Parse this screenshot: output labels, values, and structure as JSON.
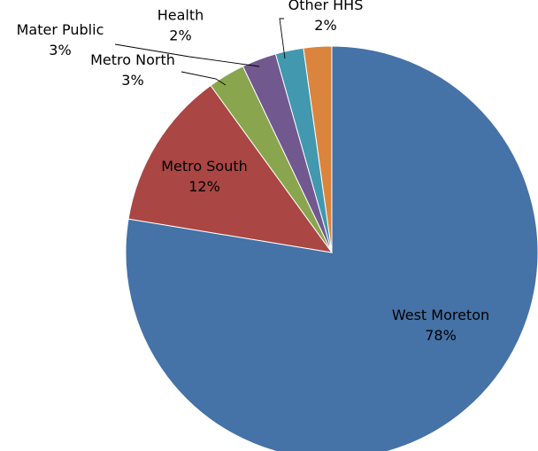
{
  "chart_data": {
    "type": "pie",
    "title": "",
    "start": "12 o'clock, clockwise",
    "slices": [
      {
        "label": "West Moreton",
        "percent_label": "78%",
        "value": 77.6,
        "color": "#4572A7"
      },
      {
        "label": "Metro South",
        "percent_label": "12%",
        "value": 12.4,
        "color": "#AA4643"
      },
      {
        "label": "Metro North",
        "percent_label": "3%",
        "value": 2.9,
        "color": "#89A54E"
      },
      {
        "label": "Mater Public",
        "percent_label": "3%",
        "value": 2.7,
        "color": "#71588F"
      },
      {
        "label": "Childrens Health",
        "percent_label": "2%",
        "value": 2.2,
        "color": "#4198AF"
      },
      {
        "label": "Other HHS",
        "percent_label": "2%",
        "value": 2.2,
        "color": "#DB843D"
      }
    ]
  }
}
